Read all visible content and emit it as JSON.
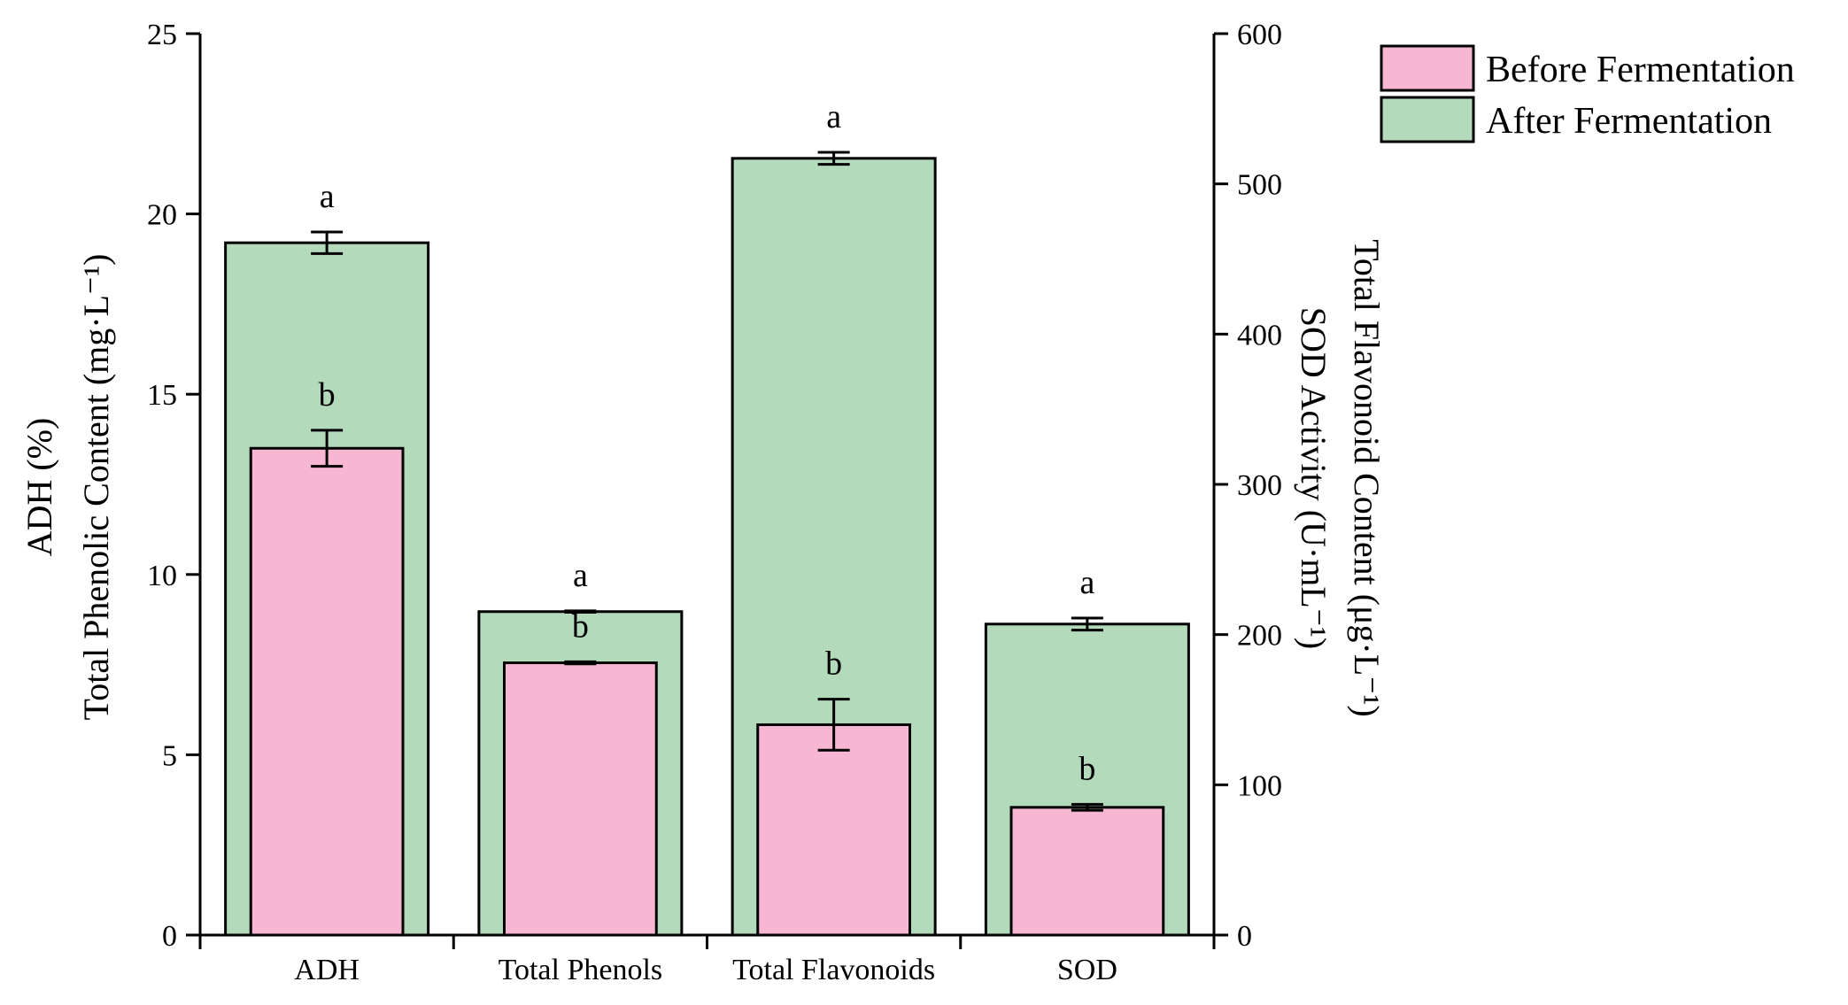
{
  "chart_data": {
    "type": "bar",
    "categories": [
      "ADH",
      "Total Phenols",
      "Total Flavonoids",
      "SOD"
    ],
    "left_axis": {
      "title_line1": "ADH (%)",
      "title_line2": "Total Phenolic Content (mg·L⁻¹)",
      "ylim": [
        0,
        25
      ],
      "ticks": [
        0,
        5,
        10,
        15,
        20,
        25
      ]
    },
    "right_axis": {
      "title_line1": "Total Flavonoid Content (μg·L⁻¹)",
      "title_line2": "SOD Activity (U·mL⁻¹)",
      "ylim": [
        0,
        600
      ],
      "ticks": [
        0,
        100,
        200,
        300,
        400,
        500,
        600
      ]
    },
    "series": [
      {
        "name": "Before Fermentation",
        "color": "#f7b6d2",
        "values": [
          13.5,
          7.55,
          140,
          85
        ],
        "errors": [
          0.5,
          0.03,
          17,
          2
        ],
        "axes": [
          "left",
          "left",
          "right",
          "right"
        ],
        "labels": [
          "b",
          "b",
          "b",
          "b"
        ]
      },
      {
        "name": "After Fermentation",
        "color": "#b3dbbb",
        "values": [
          19.2,
          8.97,
          517,
          207
        ],
        "errors": [
          0.3,
          0.02,
          4,
          4
        ],
        "axes": [
          "left",
          "left",
          "right",
          "right"
        ],
        "labels": [
          "a",
          "a",
          "a",
          "a"
        ]
      }
    ],
    "legend_position": "top-right"
  }
}
